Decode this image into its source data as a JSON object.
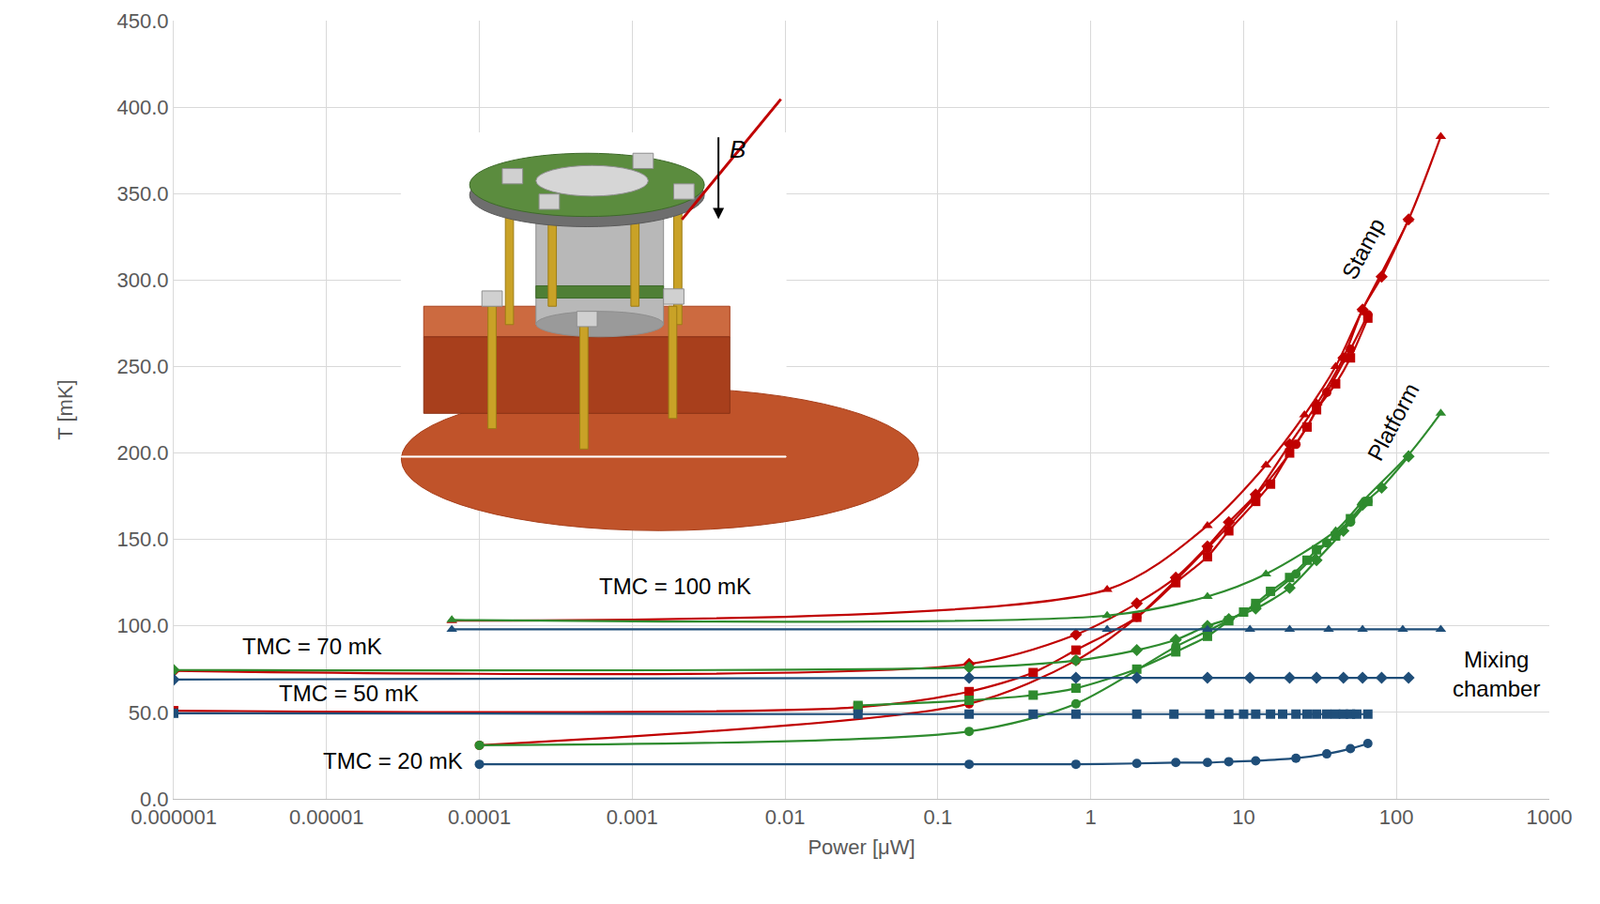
{
  "chart_data": {
    "type": "line",
    "x_label": "Power [μW]",
    "y_label": "T [mK]",
    "log": "x",
    "grid": true,
    "xlim": [
      1e-06,
      1000
    ],
    "xticks": [
      1e-06,
      1e-05,
      0.0001,
      0.001,
      0.01,
      0.1,
      1,
      10,
      100,
      1000
    ],
    "ylim": [
      0,
      450
    ],
    "yticks": [
      {
        "value": 0,
        "label": "0.0"
      },
      {
        "value": 50,
        "label": "50.0"
      },
      {
        "value": 100,
        "label": "100.0"
      },
      {
        "value": 150,
        "label": "150.0"
      },
      {
        "value": 200,
        "label": "200.0"
      },
      {
        "value": 250,
        "label": "250.0"
      },
      {
        "value": 300,
        "label": "300.0"
      },
      {
        "value": 350,
        "label": "350.0"
      },
      {
        "value": 400,
        "label": "400.0"
      },
      {
        "value": 450,
        "label": "450.0"
      }
    ],
    "series": [
      {
        "name": "Stamp",
        "color": "#c00000",
        "marker": "triangle",
        "x": [
          6.6e-05,
          1.28,
          5.8,
          14,
          25,
          40,
          60,
          120,
          195
        ],
        "values": [
          103,
          121,
          158,
          193,
          222,
          250,
          283,
          335,
          383
        ]
      },
      {
        "name": "Stamp",
        "color": "#c00000",
        "marker": "diamond",
        "x": [
          1e-06,
          0.16,
          0.8,
          2,
          3.6,
          5.8,
          8,
          12,
          20,
          30,
          45,
          60,
          80,
          120
        ],
        "values": [
          74,
          78,
          95,
          113,
          128,
          146,
          160,
          176,
          205,
          228,
          255,
          283,
          302,
          335
        ]
      },
      {
        "name": "Stamp",
        "color": "#c00000",
        "marker": "square",
        "x": [
          1e-06,
          0.03,
          0.16,
          0.42,
          0.8,
          2,
          3.6,
          5.8,
          8,
          12,
          15,
          20,
          26,
          30,
          40,
          50,
          65
        ],
        "values": [
          51,
          53,
          62,
          73,
          86,
          105,
          125,
          140,
          155,
          172,
          182,
          200,
          215,
          225,
          240,
          255,
          278
        ]
      },
      {
        "name": "Stamp",
        "color": "#c00000",
        "marker": "circle",
        "x": [
          0.0001,
          0.16,
          0.8,
          2,
          5.8,
          12,
          22,
          35,
          50,
          65
        ],
        "values": [
          31,
          55,
          80,
          105,
          145,
          175,
          205,
          235,
          260,
          280
        ]
      },
      {
        "name": "Platform",
        "color": "#2e8b2e",
        "marker": "triangle",
        "x": [
          6.6e-05,
          1.28,
          5.8,
          14,
          40,
          60,
          120,
          195
        ],
        "values": [
          103.5,
          106,
          117,
          130,
          155,
          172,
          199,
          223
        ]
      },
      {
        "name": "Platform",
        "color": "#2e8b2e",
        "marker": "diamond",
        "x": [
          1e-06,
          0.16,
          0.8,
          2,
          3.6,
          5.8,
          8,
          12,
          20,
          30,
          45,
          60,
          80,
          120
        ],
        "values": [
          74.5,
          76,
          80,
          86,
          92,
          100,
          104,
          110,
          122,
          138,
          155,
          170,
          180,
          198
        ]
      },
      {
        "name": "Platform",
        "color": "#2e8b2e",
        "marker": "square",
        "x": [
          0.03,
          0.16,
          0.42,
          0.8,
          2,
          3.6,
          5.8,
          8,
          10,
          12,
          15,
          20,
          26,
          30,
          40,
          50,
          65
        ],
        "values": [
          54,
          57,
          60,
          64,
          75,
          85,
          94,
          103,
          108,
          113,
          120,
          128,
          138,
          144,
          152,
          162,
          172
        ]
      },
      {
        "name": "Platform",
        "color": "#2e8b2e",
        "marker": "circle",
        "x": [
          0.0001,
          0.16,
          0.8,
          3.6,
          5.8,
          12,
          22,
          35,
          50,
          65
        ],
        "values": [
          31,
          39,
          55,
          88,
          97,
          112,
          130,
          148,
          160,
          172
        ]
      },
      {
        "name": "Mixing chamber",
        "color": "#1f4e79",
        "marker": "triangle",
        "x": [
          6.6e-05,
          1.28,
          5.8,
          11,
          20,
          36,
          60,
          110,
          195
        ],
        "values": [
          98,
          98,
          98,
          98,
          98,
          98,
          98,
          98,
          98
        ]
      },
      {
        "name": "Mixing chamber",
        "color": "#1f4e79",
        "marker": "diamond",
        "x": [
          1e-06,
          0.16,
          0.8,
          2,
          5.8,
          11,
          20,
          30,
          45,
          60,
          80,
          120
        ],
        "values": [
          69,
          70,
          70,
          70,
          70,
          70,
          70,
          70,
          70,
          70,
          70,
          70
        ]
      },
      {
        "name": "Mixing chamber",
        "color": "#1f4e79",
        "marker": "square",
        "x": [
          1e-06,
          0.03,
          0.16,
          0.42,
          0.8,
          2,
          3.5,
          6,
          8,
          10,
          12,
          15,
          18,
          22,
          26,
          30,
          35,
          40,
          45,
          50,
          55,
          65
        ],
        "values": [
          49.5,
          49,
          49,
          49,
          49,
          49,
          49,
          49,
          49,
          49,
          49,
          49,
          49,
          49,
          49,
          49,
          49,
          49,
          49,
          49,
          49,
          49
        ]
      },
      {
        "name": "Mixing chamber",
        "color": "#1f4e79",
        "marker": "circle",
        "x": [
          0.0001,
          0.16,
          0.8,
          2,
          3.6,
          5.8,
          8,
          12,
          22,
          35,
          50,
          65
        ],
        "values": [
          20,
          20,
          20,
          20.5,
          21,
          21,
          21.5,
          22,
          23.5,
          26,
          29,
          32
        ]
      }
    ],
    "annotations": [
      {
        "text": "TMC = 100 mK",
        "x": 0.0019,
        "y": 123
      },
      {
        "text": "TMC = 70 mK",
        "x": 8e-06,
        "y": 88
      },
      {
        "text": "TMC = 50 mK",
        "x": 1.4e-05,
        "y": 61
      },
      {
        "text": "TMC = 20 mK",
        "x": 8e-05,
        "y": 22
      },
      {
        "text": "Stamp",
        "x": 60,
        "y": 318
      },
      {
        "text": "Platform",
        "x": 95,
        "y": 218
      },
      {
        "text": "Mixing chamber",
        "x": 450,
        "y": 72
      }
    ]
  },
  "inset": {
    "label": "B"
  }
}
